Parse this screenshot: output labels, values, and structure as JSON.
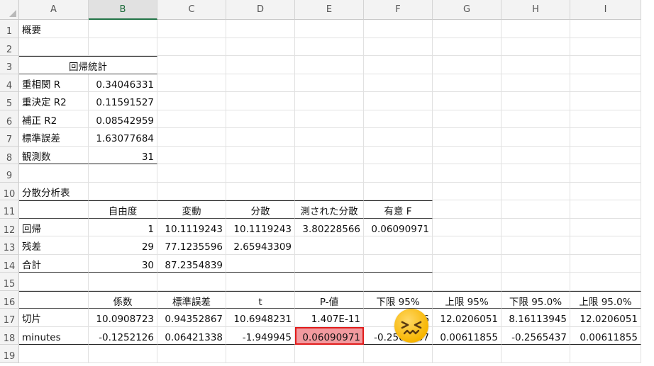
{
  "columns": [
    "A",
    "B",
    "C",
    "D",
    "E",
    "F",
    "G",
    "H",
    "I"
  ],
  "selected_column": "B",
  "rows": [
    "1",
    "2",
    "3",
    "4",
    "5",
    "6",
    "7",
    "8",
    "9",
    "10",
    "11",
    "12",
    "13",
    "14",
    "15",
    "16",
    "17",
    "18",
    "19"
  ],
  "summary": {
    "title": "概要",
    "regression_stats_header": "回帰統計",
    "stats": [
      {
        "label": "重相関 R",
        "value": "0.34046331"
      },
      {
        "label": "重決定 R2",
        "value": "0.11591527"
      },
      {
        "label": "補正 R2",
        "value": "0.08542959"
      },
      {
        "label": "標準誤差",
        "value": "1.63077684"
      },
      {
        "label": "観測数",
        "value": "31"
      }
    ]
  },
  "anova": {
    "title": "分散分析表",
    "headers": [
      "自由度",
      "変動",
      "分散",
      "測された分散",
      "有意 F"
    ],
    "rows": [
      {
        "label": "回帰",
        "df": "1",
        "ss": "10.1119243",
        "ms": "10.1119243",
        "f": "3.80228566",
        "sigf": "0.06090971"
      },
      {
        "label": "残差",
        "df": "29",
        "ss": "77.1235596",
        "ms": "2.65943309",
        "f": "",
        "sigf": ""
      },
      {
        "label": "合計",
        "df": "30",
        "ss": "87.2354839",
        "ms": "",
        "f": "",
        "sigf": ""
      }
    ]
  },
  "coefficients": {
    "headers": [
      "係数",
      "標準誤差",
      "t",
      "P-値",
      "下限 95%",
      "上限 95%",
      "下限 95.0%",
      "上限 95.0%"
    ],
    "rows": [
      {
        "label": "切片",
        "values": [
          "10.0908723",
          "0.94352867",
          "10.6948231",
          "1.407E-11",
          "8.16",
          "12.0206051",
          "8.16113945",
          "12.0206051"
        ]
      },
      {
        "label": "minutes",
        "values": [
          "-0.1252126",
          "0.06421338",
          "-1.949945",
          "0.06090971",
          "-0.2565437",
          "0.00611855",
          "-0.2565437",
          "0.00611855"
        ]
      }
    ]
  },
  "highlight_color": "#f29a9f",
  "emoji_icon": "confounded-face-icon"
}
